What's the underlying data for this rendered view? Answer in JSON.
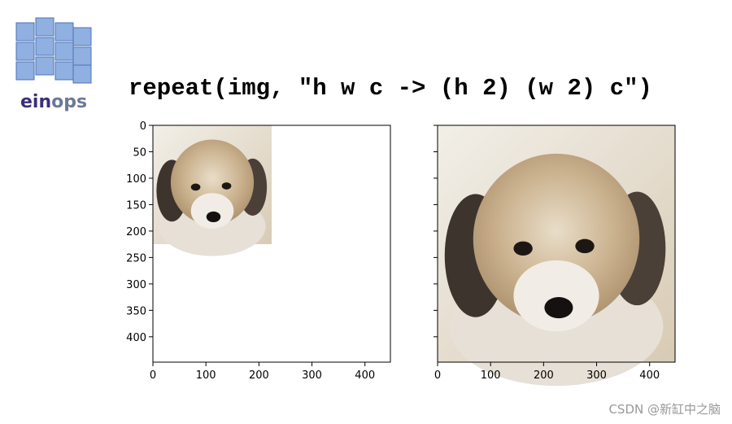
{
  "logo": {
    "parts": [
      "ein",
      "ops"
    ]
  },
  "code": "repeat(img, \"h w c -> (h 2) (w 2) c\")",
  "panels": [
    {
      "xlim": [
        0,
        448
      ],
      "ylim": [
        448,
        0
      ],
      "xticks": [
        0,
        100,
        200,
        300,
        400
      ],
      "yticks": [
        0,
        50,
        100,
        150,
        200,
        250,
        300,
        350,
        400
      ]
    },
    {
      "xlim": [
        0,
        448
      ],
      "ylim": [
        448,
        0
      ],
      "xticks": [
        0,
        100,
        200,
        300,
        400
      ]
    }
  ],
  "watermark": "CSDN @新缸中之脑"
}
